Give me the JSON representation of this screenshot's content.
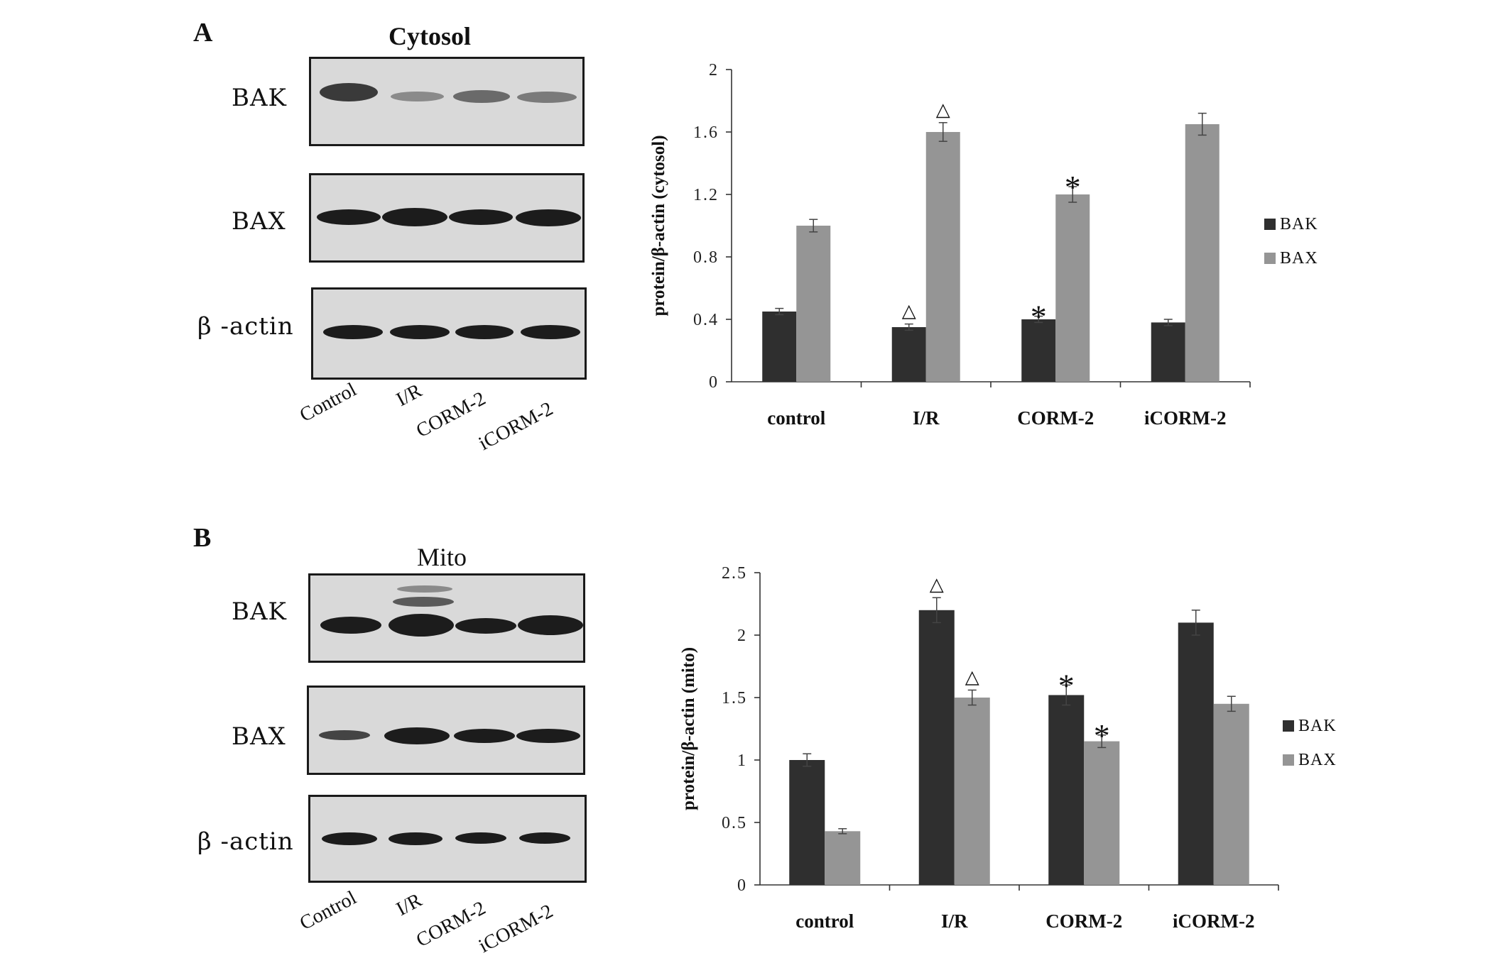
{
  "panels": [
    {
      "letter": "A",
      "blot_title": "Cytosol",
      "rows": [
        "BAK",
        "BAX",
        "β -actin"
      ],
      "lanes": [
        "Control",
        "I/R",
        "CORM-2",
        "iCORM-2"
      ]
    },
    {
      "letter": "B",
      "blot_title": "Mito",
      "rows": [
        "BAK",
        "BAX",
        "β -actin"
      ],
      "lanes": [
        "Control",
        "I/R",
        "CORM-2",
        "iCORM-2"
      ]
    }
  ],
  "chart_data": [
    {
      "type": "bar",
      "categories": [
        "control",
        "I/R",
        "CORM-2",
        "iCORM-2"
      ],
      "ylabel": "protein/β-actin (cytosol)",
      "ylim": [
        0,
        2
      ],
      "yticks": [
        "0",
        "0.4",
        "0.8",
        "1.2",
        "1.6",
        "2"
      ],
      "legend_position": "right",
      "grid": false,
      "series": [
        {
          "name": "BAK",
          "color": "#2f2f2f",
          "values": [
            0.45,
            0.35,
            0.4,
            0.38
          ],
          "errors": [
            0.02,
            0.02,
            0.02,
            0.02
          ],
          "markers": [
            "",
            "△",
            "*",
            ""
          ]
        },
        {
          "name": "BAX",
          "color": "#959595",
          "values": [
            1.0,
            1.6,
            1.2,
            1.65
          ],
          "errors": [
            0.04,
            0.06,
            0.05,
            0.07
          ],
          "markers": [
            "",
            "△",
            "*",
            ""
          ]
        }
      ]
    },
    {
      "type": "bar",
      "categories": [
        "control",
        "I/R",
        "CORM-2",
        "iCORM-2"
      ],
      "ylabel": "protein/β-actin (mito)",
      "ylim": [
        0,
        2.5
      ],
      "yticks": [
        "0",
        "0.5",
        "1",
        "1.5",
        "2",
        "2.5"
      ],
      "legend_position": "right",
      "grid": false,
      "series": [
        {
          "name": "BAK",
          "color": "#2f2f2f",
          "values": [
            1.0,
            2.2,
            1.52,
            2.1
          ],
          "errors": [
            0.05,
            0.1,
            0.08,
            0.1
          ],
          "markers": [
            "",
            "△",
            "*",
            ""
          ]
        },
        {
          "name": "BAX",
          "color": "#959595",
          "values": [
            0.43,
            1.5,
            1.15,
            1.45
          ],
          "errors": [
            0.02,
            0.06,
            0.05,
            0.06
          ],
          "markers": [
            "",
            "△",
            "*",
            ""
          ]
        }
      ]
    }
  ]
}
